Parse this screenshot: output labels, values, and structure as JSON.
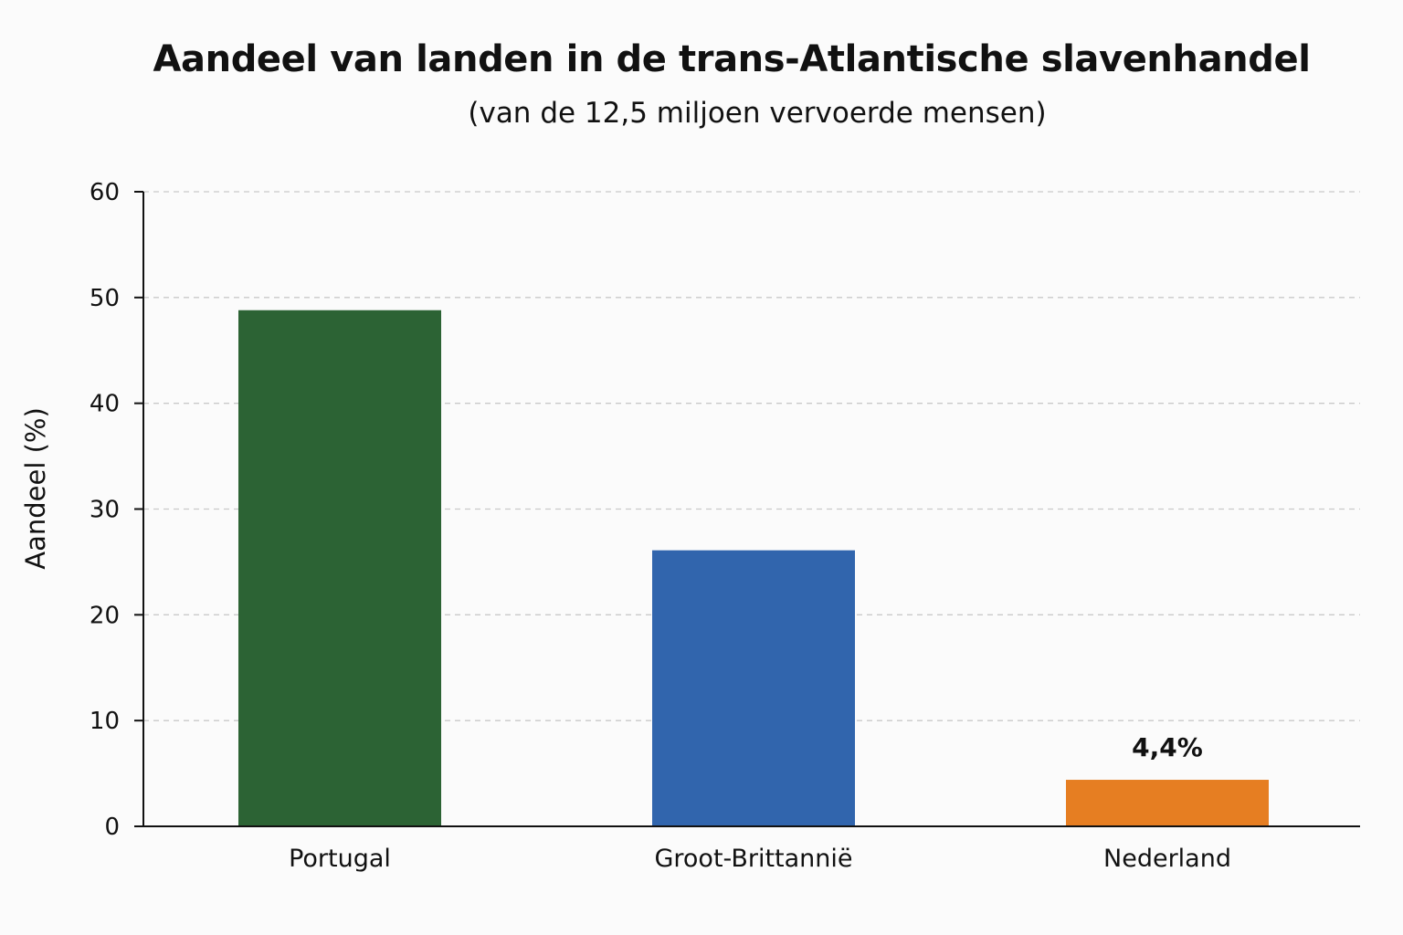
{
  "chart_data": {
    "type": "bar",
    "title": "Aandeel van landen in de trans-Atlantische slavenhandel",
    "subtitle": "(van de 12,5 miljoen vervoerde mensen)",
    "ylabel": "Aandeel (%)",
    "xlabel": "",
    "ylim": [
      0,
      60
    ],
    "yticks": [
      0,
      10,
      20,
      30,
      40,
      50,
      60
    ],
    "grid": true,
    "categories": [
      "Portugal",
      "Groot-Brittannië",
      "Nederland"
    ],
    "values": [
      48.8,
      26.1,
      4.4
    ],
    "colors": [
      "#2c6334",
      "#3165ad",
      "#e67e22"
    ],
    "data_labels": [
      "",
      "",
      "4,4%"
    ]
  }
}
